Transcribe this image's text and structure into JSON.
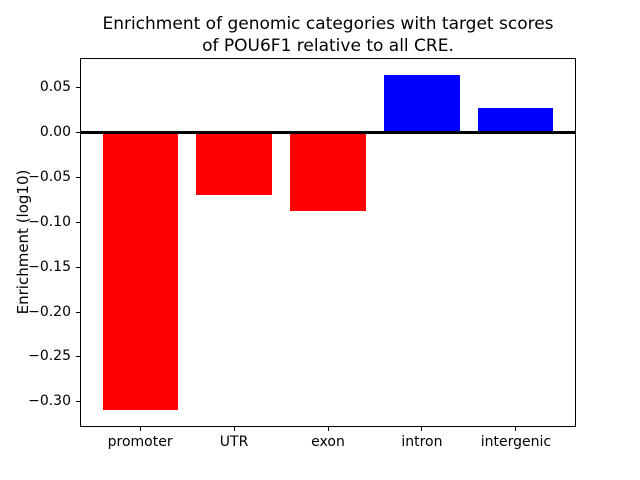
{
  "chart_data": {
    "type": "bar",
    "title": "Enrichment of genomic categories with target scores\nof POU6F1 relative to all CRE.",
    "xlabel": "",
    "ylabel": "Enrichment (log10)",
    "categories": [
      "promoter",
      "UTR",
      "exon",
      "intron",
      "intergenic"
    ],
    "values": [
      -0.309,
      -0.07,
      -0.087,
      0.064,
      0.027
    ],
    "bar_colors": [
      "#ff0000",
      "#ff0000",
      "#ff0000",
      "#0000ff",
      "#0000ff"
    ],
    "color_rule": {
      "negative": "#ff0000",
      "positive": "#0000ff"
    },
    "yticks": [
      0.05,
      0.0,
      -0.05,
      -0.1,
      -0.15,
      -0.2,
      -0.25,
      -0.3
    ],
    "ylim": [
      -0.328,
      0.083
    ],
    "xlim": [
      -0.64,
      4.64
    ],
    "bar_width": 0.8,
    "zero_line": {
      "value": 0,
      "color": "#000000"
    },
    "grid": false,
    "background": "#ffffff",
    "axis_color": "#000000"
  }
}
